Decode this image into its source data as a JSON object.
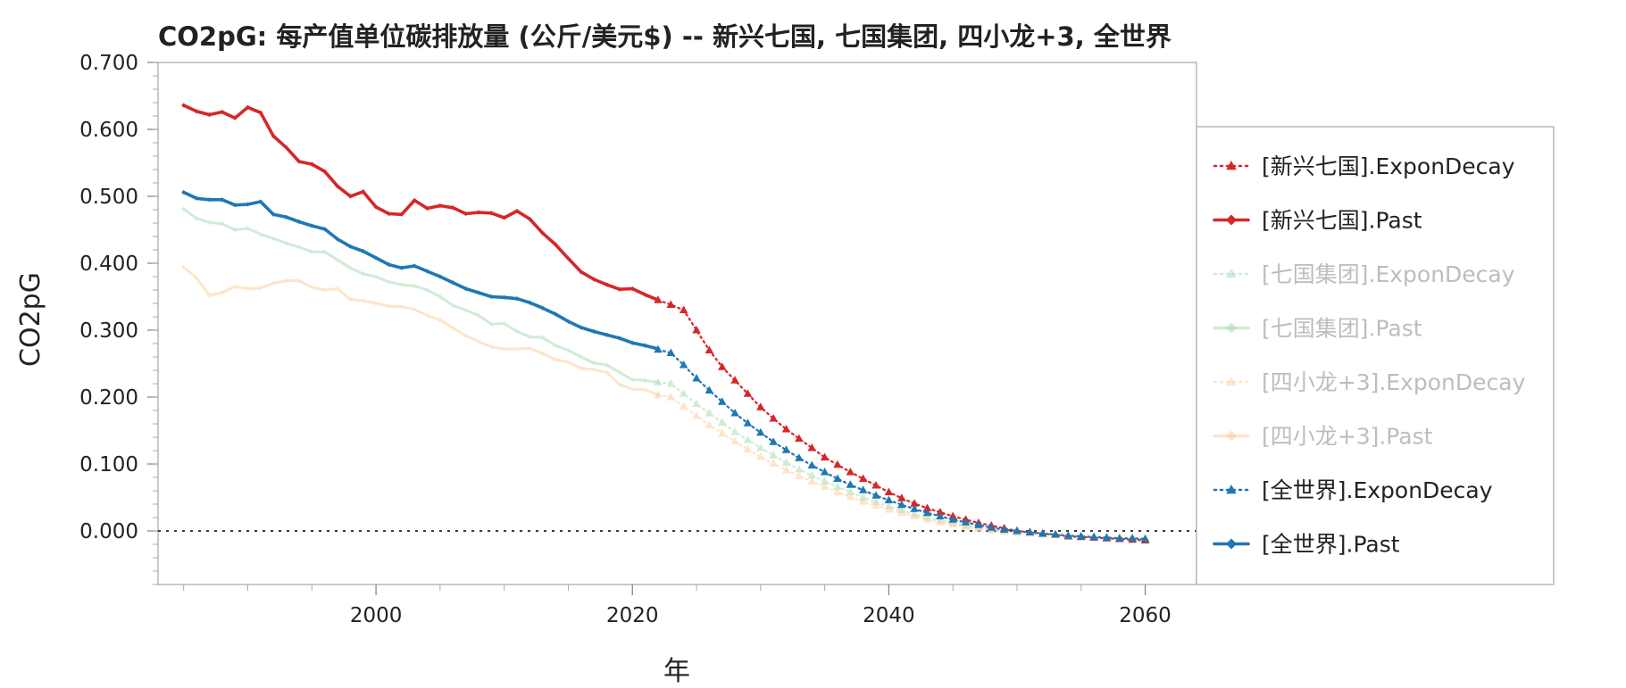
{
  "chart_data": {
    "type": "line",
    "title": "CO2pG: 每产值单位碳排放量 (公斤/美元$) -- 新兴七国, 七国集团, 四小龙+3, 全世界",
    "xlabel": "年",
    "ylabel": "CO2pG",
    "xlim": [
      1983,
      2064
    ],
    "ylim": [
      -0.08,
      0.7
    ],
    "x_ticks": [
      "2000",
      "2020",
      "2040",
      "2060"
    ],
    "y_ticks": [
      "0.700",
      "0.600",
      "0.500",
      "0.400",
      "0.300",
      "0.200",
      "0.100",
      "0.000"
    ],
    "legend_position": "right-outside",
    "reference_line": 0.0,
    "series": [
      {
        "name": "[新兴七国].ExponDecay",
        "color": "#d62728",
        "style": "dotted-triangle",
        "faded": false,
        "x": [
          2022,
          2023,
          2024,
          2025,
          2026,
          2027,
          2028,
          2029,
          2030,
          2031,
          2032,
          2033,
          2034,
          2035,
          2036,
          2037,
          2038,
          2039,
          2040,
          2041,
          2042,
          2043,
          2044,
          2045,
          2046,
          2047,
          2048,
          2049,
          2050,
          2051,
          2052,
          2053,
          2054,
          2055,
          2056,
          2057,
          2058,
          2059,
          2060
        ],
        "values": [
          0.345,
          0.338,
          0.33,
          0.3,
          0.27,
          0.245,
          0.225,
          0.205,
          0.185,
          0.168,
          0.152,
          0.138,
          0.124,
          0.11,
          0.099,
          0.088,
          0.078,
          0.068,
          0.058,
          0.049,
          0.041,
          0.034,
          0.028,
          0.022,
          0.017,
          0.012,
          0.008,
          0.004,
          0.0,
          -0.002,
          -0.004,
          -0.006,
          -0.008,
          -0.009,
          -0.01,
          -0.011,
          -0.012,
          -0.013,
          -0.014
        ]
      },
      {
        "name": "[新兴七国].Past",
        "color": "#d62728",
        "style": "solid-diamond",
        "faded": false,
        "x": [
          1985,
          1986,
          1987,
          1988,
          1989,
          1990,
          1991,
          1992,
          1993,
          1994,
          1995,
          1996,
          1997,
          1998,
          1999,
          2000,
          2001,
          2002,
          2003,
          2004,
          2005,
          2006,
          2007,
          2008,
          2009,
          2010,
          2011,
          2012,
          2013,
          2014,
          2015,
          2016,
          2017,
          2018,
          2019,
          2020,
          2021,
          2022
        ],
        "values": [
          0.636,
          0.627,
          0.622,
          0.626,
          0.617,
          0.633,
          0.625,
          0.59,
          0.573,
          0.552,
          0.548,
          0.537,
          0.515,
          0.5,
          0.507,
          0.484,
          0.474,
          0.473,
          0.494,
          0.482,
          0.486,
          0.483,
          0.474,
          0.476,
          0.475,
          0.468,
          0.478,
          0.466,
          0.445,
          0.428,
          0.407,
          0.387,
          0.376,
          0.368,
          0.361,
          0.362,
          0.353,
          0.345
        ]
      },
      {
        "name": "[七国集团].ExponDecay",
        "color": "#a8ddb5",
        "style": "dotted-triangle",
        "faded": true,
        "x": [
          2022,
          2023,
          2024,
          2025,
          2026,
          2027,
          2028,
          2029,
          2030,
          2031,
          2032,
          2033,
          2034,
          2035,
          2036,
          2037,
          2038,
          2039,
          2040,
          2041,
          2042,
          2043,
          2044,
          2045,
          2046,
          2047,
          2048,
          2049,
          2050,
          2051,
          2052,
          2053,
          2054,
          2055,
          2056,
          2057,
          2058,
          2059,
          2060
        ],
        "values": [
          0.222,
          0.22,
          0.205,
          0.19,
          0.176,
          0.162,
          0.148,
          0.136,
          0.124,
          0.113,
          0.102,
          0.092,
          0.083,
          0.074,
          0.066,
          0.058,
          0.05,
          0.043,
          0.037,
          0.031,
          0.025,
          0.02,
          0.016,
          0.012,
          0.008,
          0.005,
          0.002,
          0.0,
          -0.002,
          -0.003,
          -0.005,
          -0.006,
          -0.007,
          -0.008,
          -0.009,
          -0.01,
          -0.01,
          -0.011,
          -0.011
        ]
      },
      {
        "name": "[七国集团].Past",
        "color": "#a8ddb5",
        "style": "solid-diamond",
        "faded": true,
        "x": [
          1985,
          1986,
          1987,
          1988,
          1989,
          1990,
          1991,
          1992,
          1993,
          1994,
          1995,
          1996,
          1997,
          1998,
          1999,
          2000,
          2001,
          2002,
          2003,
          2004,
          2005,
          2006,
          2007,
          2008,
          2009,
          2010,
          2011,
          2012,
          2013,
          2014,
          2015,
          2016,
          2017,
          2018,
          2019,
          2020,
          2021,
          2022
        ],
        "values": [
          0.481,
          0.467,
          0.461,
          0.459,
          0.45,
          0.452,
          0.443,
          0.437,
          0.43,
          0.424,
          0.417,
          0.417,
          0.405,
          0.393,
          0.384,
          0.38,
          0.372,
          0.368,
          0.366,
          0.36,
          0.35,
          0.337,
          0.33,
          0.322,
          0.309,
          0.31,
          0.298,
          0.29,
          0.289,
          0.277,
          0.27,
          0.26,
          0.251,
          0.248,
          0.237,
          0.226,
          0.225,
          0.222
        ]
      },
      {
        "name": "[四小龙+3].ExponDecay",
        "color": "#fdd0a2",
        "style": "dotted-triangle",
        "faded": true,
        "x": [
          2022,
          2023,
          2024,
          2025,
          2026,
          2027,
          2028,
          2029,
          2030,
          2031,
          2032,
          2033,
          2034,
          2035,
          2036,
          2037,
          2038,
          2039,
          2040,
          2041,
          2042,
          2043,
          2044,
          2045,
          2046,
          2047,
          2048,
          2049,
          2050,
          2051,
          2052,
          2053,
          2054,
          2055,
          2056,
          2057,
          2058,
          2059,
          2060
        ],
        "values": [
          0.203,
          0.2,
          0.186,
          0.172,
          0.158,
          0.146,
          0.134,
          0.122,
          0.111,
          0.101,
          0.091,
          0.082,
          0.074,
          0.066,
          0.058,
          0.051,
          0.044,
          0.038,
          0.032,
          0.027,
          0.022,
          0.017,
          0.013,
          0.01,
          0.006,
          0.003,
          0.001,
          -0.001,
          -0.003,
          -0.004,
          -0.005,
          -0.006,
          -0.007,
          -0.008,
          -0.009,
          -0.009,
          -0.01,
          -0.01,
          -0.011
        ]
      },
      {
        "name": "[四小龙+3].Past",
        "color": "#fdd0a2",
        "style": "solid-diamond",
        "faded": true,
        "x": [
          1985,
          1986,
          1987,
          1988,
          1989,
          1990,
          1991,
          1992,
          1993,
          1994,
          1995,
          1996,
          1997,
          1998,
          1999,
          2000,
          2001,
          2002,
          2003,
          2004,
          2005,
          2006,
          2007,
          2008,
          2009,
          2010,
          2011,
          2012,
          2013,
          2014,
          2015,
          2016,
          2017,
          2018,
          2019,
          2020,
          2021,
          2022
        ],
        "values": [
          0.394,
          0.378,
          0.352,
          0.356,
          0.365,
          0.362,
          0.363,
          0.37,
          0.374,
          0.374,
          0.364,
          0.36,
          0.362,
          0.346,
          0.344,
          0.34,
          0.336,
          0.335,
          0.331,
          0.322,
          0.315,
          0.303,
          0.292,
          0.283,
          0.275,
          0.272,
          0.272,
          0.273,
          0.265,
          0.256,
          0.252,
          0.243,
          0.241,
          0.237,
          0.219,
          0.212,
          0.211,
          0.203
        ]
      },
      {
        "name": "[全世界].ExponDecay",
        "color": "#1f77b4",
        "style": "dotted-triangle",
        "faded": false,
        "x": [
          2022,
          2023,
          2024,
          2025,
          2026,
          2027,
          2028,
          2029,
          2030,
          2031,
          2032,
          2033,
          2034,
          2035,
          2036,
          2037,
          2038,
          2039,
          2040,
          2041,
          2042,
          2043,
          2044,
          2045,
          2046,
          2047,
          2048,
          2049,
          2050,
          2051,
          2052,
          2053,
          2054,
          2055,
          2056,
          2057,
          2058,
          2059,
          2060
        ],
        "values": [
          0.271,
          0.266,
          0.248,
          0.228,
          0.21,
          0.193,
          0.176,
          0.161,
          0.147,
          0.133,
          0.121,
          0.109,
          0.098,
          0.088,
          0.078,
          0.069,
          0.061,
          0.053,
          0.046,
          0.039,
          0.033,
          0.027,
          0.022,
          0.017,
          0.013,
          0.009,
          0.005,
          0.002,
          0.0,
          -0.002,
          -0.004,
          -0.005,
          -0.007,
          -0.008,
          -0.009,
          -0.01,
          -0.011,
          -0.011,
          -0.012
        ]
      },
      {
        "name": "[全世界].Past",
        "color": "#1f77b4",
        "style": "solid-diamond",
        "faded": false,
        "x": [
          1985,
          1986,
          1987,
          1988,
          1989,
          1990,
          1991,
          1992,
          1993,
          1994,
          1995,
          1996,
          1997,
          1998,
          1999,
          2000,
          2001,
          2002,
          2003,
          2004,
          2005,
          2006,
          2007,
          2008,
          2009,
          2010,
          2011,
          2012,
          2013,
          2014,
          2015,
          2016,
          2017,
          2018,
          2019,
          2020,
          2021,
          2022
        ],
        "values": [
          0.506,
          0.497,
          0.495,
          0.495,
          0.487,
          0.488,
          0.492,
          0.473,
          0.469,
          0.462,
          0.456,
          0.451,
          0.436,
          0.425,
          0.418,
          0.408,
          0.398,
          0.393,
          0.396,
          0.388,
          0.38,
          0.371,
          0.362,
          0.356,
          0.35,
          0.349,
          0.347,
          0.341,
          0.333,
          0.324,
          0.313,
          0.304,
          0.298,
          0.293,
          0.288,
          0.281,
          0.277,
          0.272
        ]
      }
    ]
  }
}
